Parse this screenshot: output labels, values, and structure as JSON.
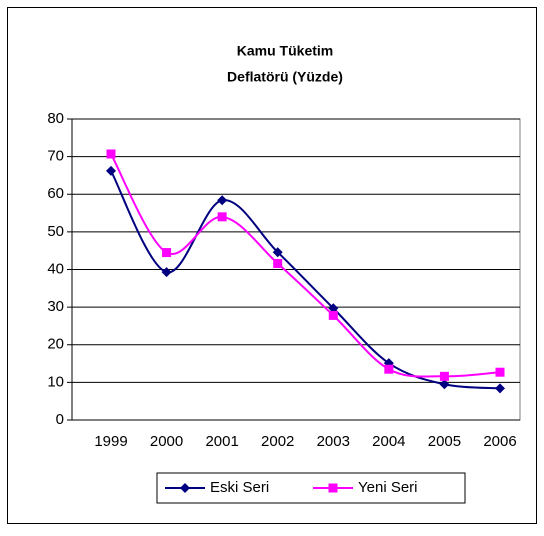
{
  "chart_data": {
    "type": "line",
    "title": [
      "Kamu Tüketim",
      "Deflatörü (Yüzde)"
    ],
    "categories": [
      "1999",
      "2000",
      "2001",
      "2002",
      "2003",
      "2004",
      "2005",
      "2006"
    ],
    "series": [
      {
        "name": "Eski Seri",
        "color": "#000080",
        "marker": "diamond",
        "values": [
          66.2,
          39.3,
          58.4,
          44.6,
          29.7,
          15.1,
          9.5,
          8.4
        ]
      },
      {
        "name": "Yeni Seri",
        "color": "#ff00ff",
        "marker": "square",
        "values": [
          70.7,
          44.5,
          54.0,
          41.6,
          27.8,
          13.5,
          11.6,
          12.7
        ]
      }
    ],
    "smooth": true,
    "ylim": [
      0,
      80
    ],
    "yticks": [
      0,
      10,
      20,
      30,
      40,
      50,
      60,
      70,
      80
    ],
    "grid": true,
    "legend": "bottom"
  }
}
